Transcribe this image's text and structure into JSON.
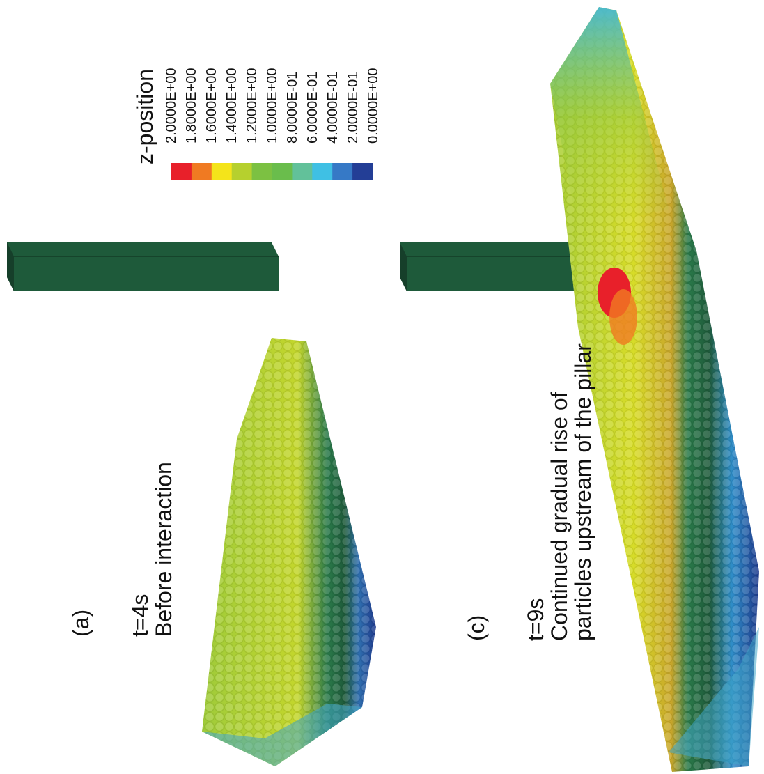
{
  "panels": [
    {
      "letter": "(a)",
      "lines": [
        "t=4s",
        "Before interaction"
      ]
    },
    {
      "letter": "(c)",
      "lines": [
        "t=9s",
        "Continued gradual rise of",
        "particles upstream of the pillar"
      ]
    }
  ],
  "legend": {
    "title": "z-position",
    "labels": [
      "2.0000E+00",
      "1.8000E+00",
      "1.6000E+00",
      "1.4000E+00",
      "1.2000E+00",
      "1.0000E+00",
      "8.0000E-01",
      "6.0000E-01",
      "4.0000E-01",
      "2.0000E-01",
      "0.0000E+00"
    ],
    "colors": [
      "#e8202a",
      "#f07a22",
      "#f4e41a",
      "#b6d02e",
      "#7cc142",
      "#6abd4c",
      "#62c19a",
      "#3fc0e4",
      "#3679c6",
      "#233e96"
    ]
  },
  "pillar_color": "#1e5a3a"
}
